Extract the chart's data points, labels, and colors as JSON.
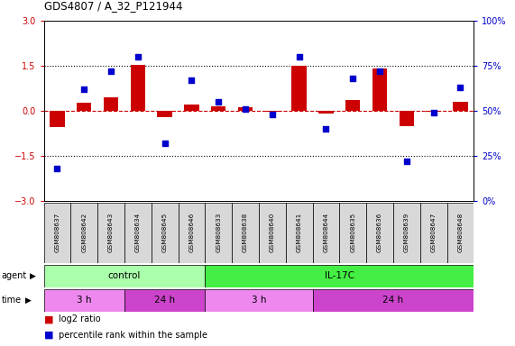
{
  "title": "GDS4807 / A_32_P121944",
  "samples": [
    "GSM808637",
    "GSM808642",
    "GSM808643",
    "GSM808634",
    "GSM808645",
    "GSM808646",
    "GSM808633",
    "GSM808638",
    "GSM808640",
    "GSM808641",
    "GSM808644",
    "GSM808635",
    "GSM808636",
    "GSM808639",
    "GSM808647",
    "GSM808648"
  ],
  "log2_ratio": [
    -0.55,
    0.28,
    0.45,
    1.52,
    -0.2,
    0.2,
    0.16,
    0.13,
    -0.02,
    1.5,
    -0.1,
    0.35,
    1.42,
    -0.5,
    -0.02,
    0.3
  ],
  "percentile": [
    18,
    62,
    72,
    80,
    32,
    67,
    55,
    51,
    48,
    80,
    40,
    68,
    72,
    22,
    49,
    63
  ],
  "ylim": [
    -3,
    3
  ],
  "yticks_left": [
    -3,
    -1.5,
    0,
    1.5,
    3
  ],
  "yticks_right_labels": [
    "0%",
    "25%",
    "50%",
    "75%",
    "100%"
  ],
  "bar_color": "#cc0000",
  "dot_color": "#0000cc",
  "hline_color": "#cc0000",
  "dotline_color": "black",
  "agent_groups": [
    {
      "label": "control",
      "start": 0,
      "end": 6,
      "color": "#aaffaa"
    },
    {
      "label": "IL-17C",
      "start": 6,
      "end": 16,
      "color": "#44ee44"
    }
  ],
  "time_groups": [
    {
      "label": "3 h",
      "start": 0,
      "end": 3,
      "color": "#ee88ee"
    },
    {
      "label": "24 h",
      "start": 3,
      "end": 6,
      "color": "#cc44cc"
    },
    {
      "label": "3 h",
      "start": 6,
      "end": 10,
      "color": "#ee88ee"
    },
    {
      "label": "24 h",
      "start": 10,
      "end": 16,
      "color": "#cc44cc"
    }
  ],
  "legend_bar_label": "log2 ratio",
  "legend_dot_label": "percentile rank within the sample",
  "agent_label": "agent",
  "time_label": "time",
  "fig_width": 5.71,
  "fig_height": 3.84,
  "background_color": "#ffffff",
  "plot_bg_color": "#ffffff",
  "tick_label_bg": "#d8d8d8"
}
